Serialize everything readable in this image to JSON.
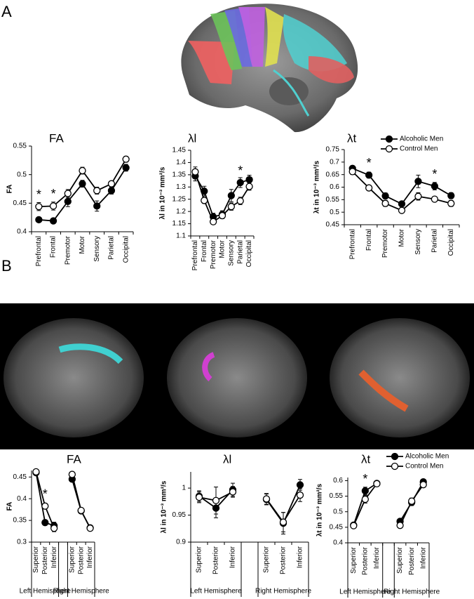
{
  "panel_labels": [
    "A",
    "B"
  ],
  "chart_data": [
    {
      "type": "line",
      "title": "FA",
      "ylabel": "FA",
      "categories": [
        "Prefrontal",
        "Frontal",
        "Premotor",
        "Motor",
        "Sensory",
        "Parietal",
        "Occipital"
      ],
      "series": [
        {
          "name": "Alcoholic Men",
          "color": "#000000",
          "fill": "#000000",
          "values": [
            0.421,
            0.419,
            0.453,
            0.484,
            0.445,
            0.472,
            0.512
          ],
          "errors": [
            0.004,
            0.004,
            0.009,
            0.006,
            0.009,
            0.006,
            0.006
          ]
        },
        {
          "name": "Control Men",
          "color": "#000000",
          "fill": "#ffffff",
          "values": [
            0.444,
            0.445,
            0.467,
            0.507,
            0.472,
            0.484,
            0.527
          ],
          "errors": [
            0.007,
            0.007,
            0.007,
            0.006,
            0.006,
            0.004,
            0.005
          ]
        }
      ],
      "ylim": [
        0.4,
        0.55
      ],
      "yticks": [
        0.4,
        0.45,
        0.5,
        0.55
      ],
      "annotations": [
        {
          "text": "*",
          "at": 0
        },
        {
          "text": "*",
          "at": 1
        }
      ]
    },
    {
      "type": "line",
      "title": "λl",
      "ylabel": "λl in 10⁻³ mm²/s",
      "categories": [
        "Prefrontal",
        "Frontal",
        "Premotor",
        "Motor",
        "Sensory",
        "Parietal",
        "Occipital"
      ],
      "series": [
        {
          "name": "Alcoholic Men",
          "color": "#000000",
          "fill": "#000000",
          "values": [
            1.345,
            1.283,
            1.178,
            1.188,
            1.265,
            1.318,
            1.33
          ],
          "errors": [
            0.02,
            0.02,
            0.015,
            0.015,
            0.025,
            0.02,
            0.018
          ]
        },
        {
          "name": "Control Men",
          "color": "#000000",
          "fill": "#ffffff",
          "values": [
            1.362,
            1.245,
            1.158,
            1.183,
            1.22,
            1.243,
            1.302
          ],
          "errors": [
            0.02,
            0.012,
            0.01,
            0.012,
            0.015,
            0.015,
            0.015
          ]
        }
      ],
      "ylim": [
        1.1,
        1.45
      ],
      "yticks": [
        1.1,
        1.15,
        1.2,
        1.25,
        1.3,
        1.35,
        1.4,
        1.45
      ],
      "annotations": [
        {
          "text": "*",
          "at": 5
        }
      ]
    },
    {
      "type": "line",
      "title": "λt",
      "ylabel": "λt in 10⁻³ mm²/s",
      "legend": true,
      "categories": [
        "Prefrontal",
        "Frontal",
        "Premotor",
        "Motor",
        "Sensory",
        "Parietal",
        "Occipital"
      ],
      "series": [
        {
          "name": "Alcoholic Men",
          "color": "#000000",
          "fill": "#000000",
          "values": [
            0.675,
            0.648,
            0.565,
            0.533,
            0.623,
            0.604,
            0.566
          ],
          "errors": [
            0.01,
            0.012,
            0.012,
            0.01,
            0.025,
            0.015,
            0.012
          ]
        },
        {
          "name": "Control Men",
          "color": "#000000",
          "fill": "#ffffff",
          "values": [
            0.662,
            0.597,
            0.535,
            0.507,
            0.563,
            0.552,
            0.535
          ],
          "errors": [
            0.012,
            0.01,
            0.012,
            0.01,
            0.015,
            0.01,
            0.012
          ]
        }
      ],
      "ylim": [
        0.45,
        0.75
      ],
      "yticks": [
        0.45,
        0.5,
        0.55,
        0.6,
        0.65,
        0.7,
        0.75
      ],
      "annotations": [
        {
          "text": "*",
          "at": 1
        },
        {
          "text": "*",
          "at": 5
        }
      ]
    },
    {
      "type": "line",
      "title": "FA",
      "ylabel": "FA",
      "categories": [
        "Superior",
        "Posterior",
        "Inferior",
        null,
        "Superior",
        "Posterior",
        "Inferior"
      ],
      "group_labels": [
        "Left Hemisphere",
        "Right Hemisphere"
      ],
      "series": [
        {
          "name": "Alcoholic Men",
          "color": "#000000",
          "fill": "#000000",
          "values": [
            0.46,
            0.345,
            0.338,
            null,
            0.445,
            0.372,
            0.333
          ],
          "errors": [
            0.003,
            0.004,
            0.008,
            null,
            0.004,
            0.006,
            0.003
          ]
        },
        {
          "name": "Control Men",
          "color": "#000000",
          "fill": "#ffffff",
          "values": [
            0.462,
            0.383,
            0.332,
            null,
            0.456,
            0.373,
            0.332
          ],
          "errors": [
            0.003,
            0.004,
            0.008,
            null,
            0.004,
            0.005,
            0.003
          ]
        }
      ],
      "ylim": [
        0.3,
        0.465
      ],
      "yticks": [
        0.3,
        0.35,
        0.4,
        0.45
      ],
      "annotations": [
        {
          "text": "*",
          "at": 1
        }
      ]
    },
    {
      "type": "line",
      "title": "λl",
      "ylabel": "λl in 10⁻³ mm²/s",
      "categories": [
        "Superior",
        "Posterior",
        "Inferior",
        null,
        "Superior",
        "Posterior",
        "Inferior"
      ],
      "group_labels": [
        "Left Hemisphere",
        "Right Hemisphere"
      ],
      "series": [
        {
          "name": "Alcoholic Men",
          "color": "#000000",
          "fill": "#000000",
          "values": [
            0.985,
            0.963,
            0.997,
            null,
            0.979,
            0.935,
            1.006
          ],
          "errors": [
            0.01,
            0.018,
            0.012,
            null,
            0.01,
            0.02,
            0.01
          ]
        },
        {
          "name": "Control Men",
          "color": "#000000",
          "fill": "#ffffff",
          "values": [
            0.983,
            0.977,
            0.993,
            null,
            0.98,
            0.937,
            0.987
          ],
          "errors": [
            0.01,
            0.025,
            0.01,
            null,
            0.01,
            0.018,
            0.012
          ]
        }
      ],
      "ylim": [
        0.9,
        1.03
      ],
      "yticks": [
        0.9,
        0.95,
        1
      ],
      "annotations": []
    },
    {
      "type": "line",
      "title": "λt",
      "ylabel": "λt in 10⁻³ mm²/s",
      "legend": true,
      "categories": [
        "Superior",
        "Posterior",
        "Inferior",
        null,
        "Superior",
        "Posterior",
        "Inferior"
      ],
      "group_labels": [
        "Left Hemisphere",
        "Right Hemisphere"
      ],
      "series": [
        {
          "name": "Alcoholic Men",
          "color": "#000000",
          "fill": "#000000",
          "values": [
            0.457,
            0.567,
            0.591,
            null,
            0.469,
            0.53,
            0.596
          ],
          "errors": [
            0.005,
            0.012,
            0.006,
            null,
            0.006,
            0.01,
            0.005
          ]
        },
        {
          "name": "Control Men",
          "color": "#000000",
          "fill": "#ffffff",
          "values": [
            0.455,
            0.54,
            0.59,
            null,
            0.456,
            0.534,
            0.587
          ],
          "errors": [
            0.005,
            0.012,
            0.006,
            null,
            0.005,
            0.01,
            0.005
          ]
        }
      ],
      "ylim": [
        0.4,
        0.61
      ],
      "yticks": [
        0.4,
        0.45,
        0.5,
        0.55,
        0.6
      ],
      "annotations": [
        {
          "text": "*",
          "at": 1
        }
      ]
    }
  ]
}
